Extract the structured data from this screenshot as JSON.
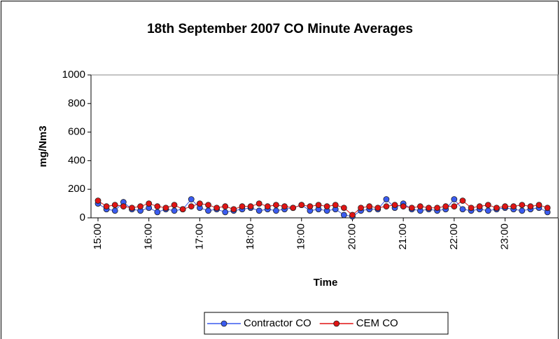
{
  "chart_data": {
    "type": "scatter-line",
    "title": "18th September 2007 CO Minute Averages",
    "xlabel": "Time",
    "ylabel": "mg/Nm3",
    "x": [
      "15:00",
      "15:10",
      "15:20",
      "15:30",
      "15:40",
      "15:50",
      "16:00",
      "16:10",
      "16:20",
      "16:30",
      "16:40",
      "16:50",
      "17:00",
      "17:10",
      "17:20",
      "17:30",
      "17:40",
      "17:50",
      "18:00",
      "18:10",
      "18:20",
      "18:30",
      "18:40",
      "18:50",
      "19:00",
      "19:10",
      "19:20",
      "19:30",
      "19:40",
      "19:50",
      "20:00",
      "20:10",
      "20:20",
      "20:30",
      "20:40",
      "20:50",
      "21:00",
      "21:10",
      "21:20",
      "21:30",
      "21:40",
      "21:50",
      "22:00",
      "22:10",
      "22:20",
      "22:30",
      "22:40",
      "22:50",
      "23:00",
      "23:10",
      "23:20",
      "23:30",
      "23:40",
      "23:50"
    ],
    "series": [
      {
        "name": "Contractor CO",
        "color": "#3a5bef",
        "values": [
          100,
          60,
          50,
          110,
          60,
          50,
          70,
          40,
          60,
          50,
          60,
          130,
          70,
          50,
          60,
          40,
          50,
          60,
          70,
          50,
          60,
          50,
          60,
          70,
          90,
          50,
          60,
          50,
          60,
          20,
          10,
          50,
          60,
          60,
          130,
          70,
          100,
          60,
          50,
          60,
          50,
          60,
          130,
          60,
          50,
          60,
          50,
          60,
          70,
          60,
          50,
          60,
          70,
          40
        ]
      },
      {
        "name": "CEM CO",
        "color": "#e01414",
        "values": [
          120,
          80,
          90,
          80,
          70,
          80,
          100,
          80,
          70,
          90,
          60,
          80,
          100,
          90,
          70,
          80,
          60,
          80,
          80,
          100,
          80,
          90,
          80,
          70,
          90,
          80,
          90,
          80,
          90,
          70,
          20,
          70,
          80,
          70,
          80,
          90,
          80,
          70,
          80,
          70,
          70,
          80,
          80,
          120,
          70,
          80,
          90,
          70,
          80,
          80,
          90,
          80,
          90,
          70
        ]
      }
    ],
    "xlim": [
      "15:00",
      "23:59"
    ],
    "xticks": [
      "15:00",
      "16:00",
      "17:00",
      "18:00",
      "19:00",
      "20:00",
      "21:00",
      "22:00",
      "23:00"
    ],
    "ylim": [
      0,
      1000
    ],
    "yticks": [
      0,
      200,
      400,
      600,
      800,
      1000
    ],
    "grid": false,
    "legend": "bottom"
  }
}
